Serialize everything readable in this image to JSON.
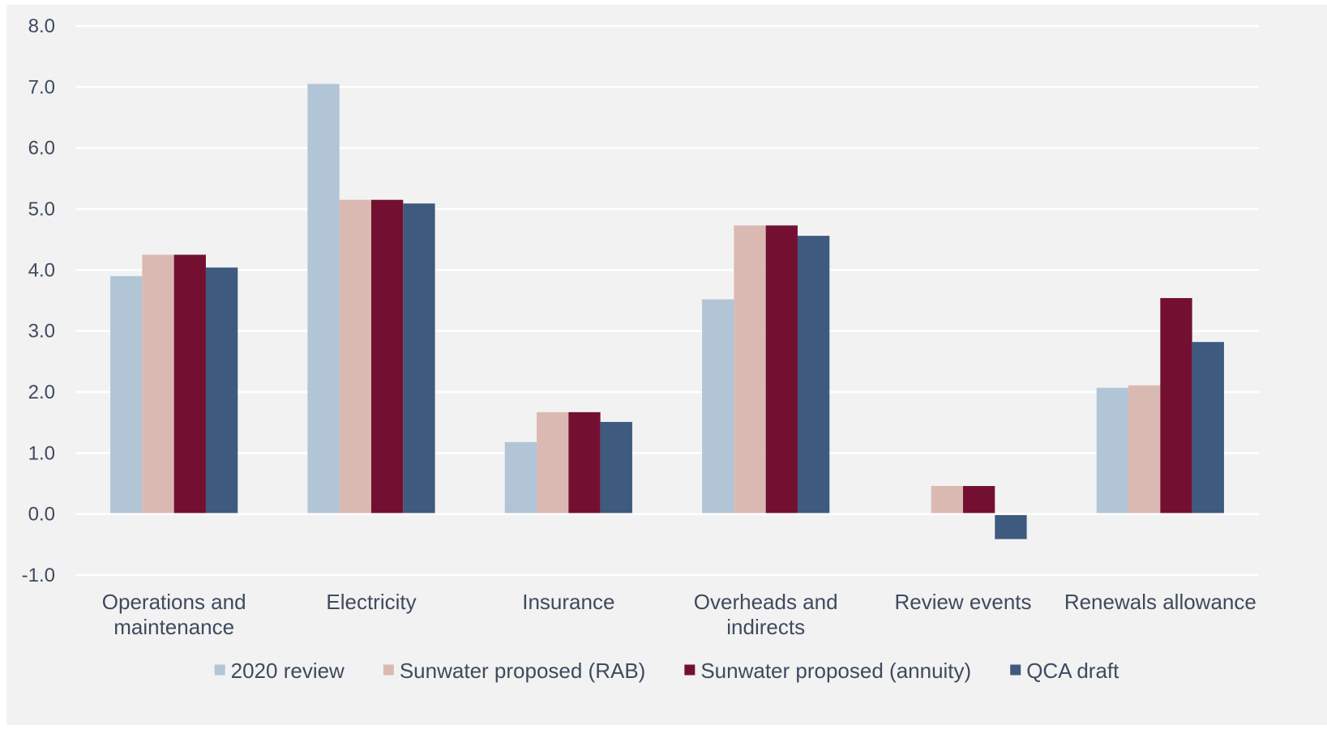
{
  "chart_data": {
    "type": "bar",
    "title": "",
    "xlabel": "",
    "ylabel": "",
    "ylim": [
      -1.0,
      8.0
    ],
    "yticks": [
      "8.0",
      "7.0",
      "6.0",
      "5.0",
      "4.0",
      "3.0",
      "2.0",
      "1.0",
      "0.0",
      "-1.0"
    ],
    "ytick_values": [
      8,
      7,
      6,
      5,
      4,
      3,
      2,
      1,
      0,
      -1
    ],
    "grid": true,
    "legend_position": "bottom",
    "categories": [
      [
        "Operations and",
        "maintenance"
      ],
      [
        "Electricity"
      ],
      [
        "Insurance"
      ],
      [
        "Overheads and",
        "indirects"
      ],
      [
        "Review events"
      ],
      [
        "Renewals allowance"
      ]
    ],
    "series": [
      {
        "name": "2020 review",
        "color": "#b1c5d6",
        "values": [
          3.9,
          7.05,
          1.18,
          3.52,
          0.0,
          2.07
        ]
      },
      {
        "name": "Sunwater proposed (RAB)",
        "color": "#dbb9b3",
        "values": [
          4.25,
          5.15,
          1.67,
          4.73,
          0.46,
          2.11
        ]
      },
      {
        "name": "Sunwater proposed (annuity)",
        "color": "#731031",
        "values": [
          4.25,
          5.15,
          1.67,
          4.73,
          0.46,
          3.54
        ]
      },
      {
        "name": "QCA draft",
        "color": "#3e5a7e",
        "values": [
          4.04,
          5.09,
          1.51,
          4.56,
          -0.41,
          2.82
        ]
      }
    ]
  }
}
